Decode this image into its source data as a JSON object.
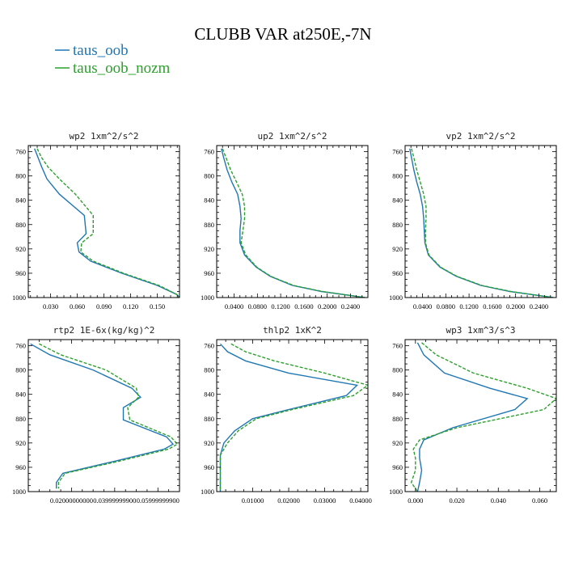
{
  "figure": {
    "title": "CLUBB VAR at250E,-7N",
    "legend": [
      {
        "name": "taus_oob",
        "color": "#1f77b4",
        "dash": "none"
      },
      {
        "name": "taus_oob_nozm",
        "color": "#2ca02c",
        "dash": "4,2"
      }
    ]
  },
  "chart_data": [
    {
      "type": "line",
      "title": "wp2  1xm^2/s^2",
      "ylim": [
        1000,
        750
      ],
      "yticks": [
        760,
        800,
        840,
        880,
        920,
        960,
        1000
      ],
      "xlim": [
        0.005,
        0.175
      ],
      "xticks": [
        0.03,
        0.06,
        0.09,
        0.12,
        0.15
      ],
      "xtick_labels": [
        "0.030",
        "0.060",
        "0.090",
        "0.120",
        "0.150"
      ],
      "y": [
        755,
        770,
        785,
        805,
        830,
        865,
        895,
        910,
        925,
        940,
        960,
        980,
        995,
        1000
      ],
      "series": [
        {
          "name": "taus_oob",
          "x": [
            0.012,
            0.016,
            0.02,
            0.026,
            0.04,
            0.068,
            0.07,
            0.06,
            0.062,
            0.075,
            0.11,
            0.15,
            0.172,
            0.175
          ]
        },
        {
          "name": "taus_oob_nozm",
          "x": [
            0.015,
            0.02,
            0.027,
            0.04,
            0.058,
            0.078,
            0.078,
            0.065,
            0.064,
            0.078,
            0.112,
            0.152,
            0.172,
            0.175
          ]
        }
      ]
    },
    {
      "type": "line",
      "title": "up2  1xm^2/s^2",
      "ylim": [
        1000,
        750
      ],
      "yticks": [
        760,
        800,
        840,
        880,
        920,
        960,
        1000
      ],
      "xlim": [
        0.01,
        0.27
      ],
      "xticks": [
        0.04,
        0.08,
        0.12,
        0.16,
        0.2,
        0.24
      ],
      "xtick_labels": [
        "0.0400",
        "0.0800",
        "0.1200",
        "0.1600",
        "0.2000",
        "0.2400"
      ],
      "y": [
        755,
        770,
        790,
        810,
        830,
        850,
        870,
        890,
        910,
        930,
        950,
        965,
        980,
        990,
        1000
      ],
      "series": [
        {
          "name": "taus_oob",
          "x": [
            0.018,
            0.022,
            0.028,
            0.036,
            0.046,
            0.05,
            0.052,
            0.05,
            0.05,
            0.058,
            0.078,
            0.102,
            0.14,
            0.19,
            0.265
          ]
        },
        {
          "name": "taus_oob_nozm",
          "x": [
            0.02,
            0.026,
            0.034,
            0.044,
            0.054,
            0.058,
            0.058,
            0.055,
            0.052,
            0.06,
            0.079,
            0.103,
            0.142,
            0.192,
            0.265
          ]
        }
      ]
    },
    {
      "type": "line",
      "title": "vp2  1xm^2/s^2",
      "ylim": [
        1000,
        750
      ],
      "yticks": [
        760,
        800,
        840,
        880,
        920,
        960,
        1000
      ],
      "xlim": [
        0.01,
        0.27
      ],
      "xticks": [
        0.04,
        0.08,
        0.12,
        0.16,
        0.2,
        0.24
      ],
      "xtick_labels": [
        "0.0400",
        "0.0800",
        "0.1200",
        "0.1600",
        "0.2000",
        "0.2400"
      ],
      "y": [
        755,
        770,
        790,
        810,
        830,
        850,
        870,
        890,
        910,
        930,
        950,
        965,
        980,
        990,
        1000
      ],
      "series": [
        {
          "name": "taus_oob",
          "x": [
            0.018,
            0.021,
            0.025,
            0.03,
            0.036,
            0.04,
            0.042,
            0.043,
            0.044,
            0.05,
            0.07,
            0.098,
            0.14,
            0.19,
            0.265
          ]
        },
        {
          "name": "taus_oob_nozm",
          "x": [
            0.021,
            0.025,
            0.03,
            0.036,
            0.042,
            0.046,
            0.046,
            0.045,
            0.045,
            0.051,
            0.071,
            0.099,
            0.142,
            0.192,
            0.265
          ]
        }
      ]
    },
    {
      "type": "line",
      "title": "rtp2  1E-6x(kg/kg)^2",
      "ylim": [
        1000,
        750
      ],
      "yticks": [
        760,
        800,
        840,
        880,
        920,
        960,
        1000
      ],
      "xlim": [
        0.0,
        0.07
      ],
      "xticks": [
        0.02,
        0.04,
        0.06
      ],
      "xtick_labels": [
        "0.02000000000",
        "0.03999999900",
        "0.05999999900"
      ],
      "y": [
        757,
        775,
        800,
        830,
        845,
        862,
        882,
        910,
        922,
        930,
        950,
        970,
        985,
        995
      ],
      "series": [
        {
          "name": "taus_oob",
          "x": [
            0.001,
            0.01,
            0.03,
            0.048,
            0.052,
            0.044,
            0.044,
            0.064,
            0.067,
            0.063,
            0.04,
            0.016,
            0.013,
            0.013
          ]
        },
        {
          "name": "taus_oob_nozm",
          "x": [
            0.005,
            0.015,
            0.036,
            0.05,
            0.051,
            0.046,
            0.047,
            0.066,
            0.069,
            0.065,
            0.042,
            0.017,
            0.014,
            0.014
          ]
        }
      ]
    },
    {
      "type": "line",
      "title": "thlp2  1xK^2",
      "ylim": [
        1000,
        750
      ],
      "yticks": [
        760,
        800,
        840,
        880,
        920,
        960,
        1000
      ],
      "xlim": [
        0.0,
        0.042
      ],
      "xticks": [
        0.01,
        0.02,
        0.03,
        0.04
      ],
      "xtick_labels": [
        "0.01000",
        "0.02000",
        "0.03000",
        "0.04000"
      ],
      "y": [
        757,
        770,
        785,
        805,
        825,
        842,
        865,
        880,
        900,
        920,
        940,
        960,
        980,
        1000
      ],
      "series": [
        {
          "name": "taus_oob",
          "x": [
            0.001,
            0.003,
            0.008,
            0.02,
            0.039,
            0.036,
            0.02,
            0.01,
            0.005,
            0.002,
            0.001,
            0.001,
            0.001,
            0.001
          ]
        },
        {
          "name": "taus_oob_nozm",
          "x": [
            0.004,
            0.008,
            0.016,
            0.03,
            0.042,
            0.038,
            0.021,
            0.011,
            0.006,
            0.003,
            0.001,
            0.001,
            0.001,
            0.001
          ]
        }
      ]
    },
    {
      "type": "line",
      "title": "wp3  1xm^3/s^3",
      "ylim": [
        1000,
        750
      ],
      "yticks": [
        760,
        800,
        840,
        880,
        920,
        960,
        1000
      ],
      "xlim": [
        -0.005,
        0.068
      ],
      "xticks": [
        0.0,
        0.02,
        0.04,
        0.06
      ],
      "xtick_labels": [
        "0.000",
        "0.020",
        "0.040",
        "0.060"
      ],
      "y": [
        755,
        775,
        805,
        830,
        847,
        865,
        895,
        915,
        930,
        945,
        965,
        985,
        1000
      ],
      "series": [
        {
          "name": "taus_oob",
          "x": [
            0.001,
            0.004,
            0.014,
            0.036,
            0.054,
            0.048,
            0.018,
            0.004,
            0.002,
            0.002,
            0.003,
            0.002,
            0.001
          ]
        },
        {
          "name": "taus_oob_nozm",
          "x": [
            0.003,
            0.01,
            0.028,
            0.054,
            0.068,
            0.062,
            0.02,
            0.002,
            -0.001,
            0.0,
            0.0,
            -0.002,
            0.001
          ]
        }
      ]
    }
  ]
}
